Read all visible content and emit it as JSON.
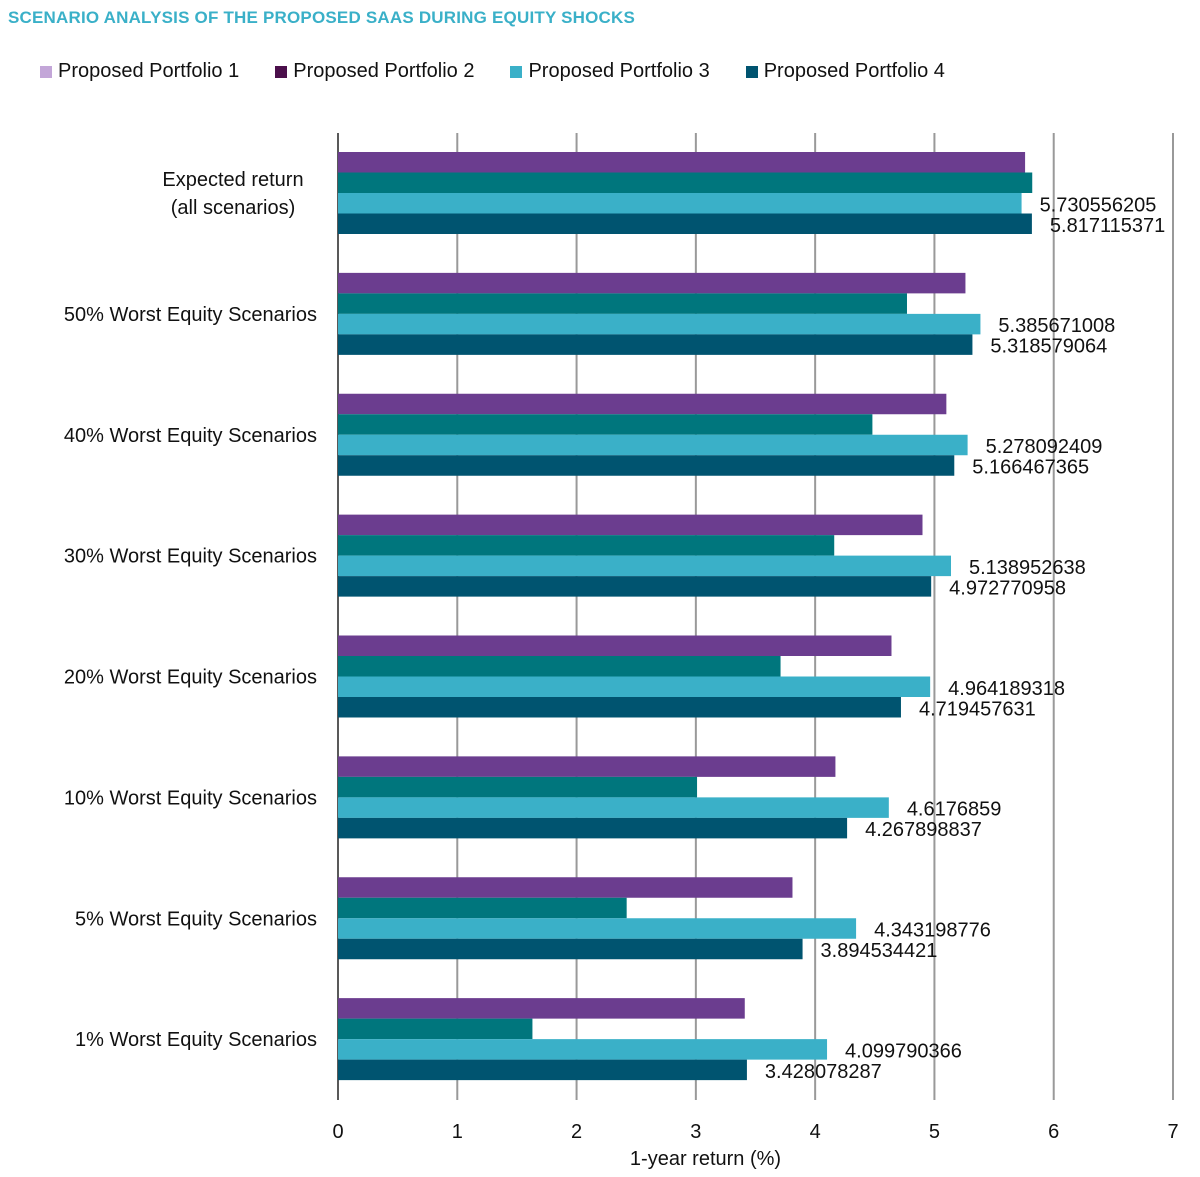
{
  "chart_data": {
    "type": "bar",
    "orientation": "horizontal",
    "title": "SCENARIO ANALYSIS OF THE PROPOSED SAAS DURING EQUITY SHOCKS",
    "xlabel": "1-year return (%)",
    "ylabel": "",
    "xlim": [
      0,
      7
    ],
    "xticks": [
      "0",
      "1",
      "2",
      "3",
      "4",
      "5",
      "6",
      "7"
    ],
    "grid": "vertical",
    "legend_position": "top",
    "categories": [
      [
        "Expected return",
        "(all scenarios)"
      ],
      [
        "50% Worst Equity Scenarios"
      ],
      [
        "40% Worst Equity Scenarios"
      ],
      [
        "30% Worst Equity Scenarios"
      ],
      [
        "20% Worst Equity Scenarios"
      ],
      [
        "10% Worst Equity Scenarios"
      ],
      [
        "5% Worst Equity Scenarios"
      ],
      [
        "1% Worst Equity Scenarios"
      ]
    ],
    "legend": [
      {
        "name": "Proposed Portfolio 1",
        "color": "#c3a6d8"
      },
      {
        "name": "Proposed Portfolio 2",
        "color": "#4b0f4b"
      },
      {
        "name": "Proposed Portfolio 3",
        "color": "#3ab0c8"
      },
      {
        "name": "Proposed Portfolio 4",
        "color": "#005470"
      }
    ],
    "series": [
      {
        "color": "#6b3d8f",
        "values": [
          5.76,
          5.26,
          5.1,
          4.9,
          4.64,
          4.17,
          3.81,
          3.41
        ],
        "labels": null
      },
      {
        "color": "#00767d",
        "values": [
          5.82,
          4.77,
          4.48,
          4.16,
          3.71,
          3.01,
          2.42,
          1.63
        ],
        "labels": null
      },
      {
        "color": "#3ab0c8",
        "values": [
          5.730556205,
          5.385671008,
          5.278092409,
          5.138952638,
          4.964189318,
          4.6176859,
          4.343198776,
          4.099790366
        ],
        "labels": [
          "5.730556205",
          "5.385671008",
          "5.278092409",
          "5.138952638",
          "4.964189318",
          "4.6176859",
          "4.343198776",
          "4.099790366"
        ]
      },
      {
        "color": "#005470",
        "values": [
          5.817115371,
          5.318579064,
          5.166467365,
          4.972770958,
          4.719457631,
          4.267898837,
          3.894534421,
          3.428078287
        ],
        "labels": [
          "5.817115371",
          "5.318579064",
          "5.166467365",
          "4.972770958",
          "4.719457631",
          "4.267898837",
          "3.894534421",
          "3.428078287"
        ]
      }
    ]
  }
}
